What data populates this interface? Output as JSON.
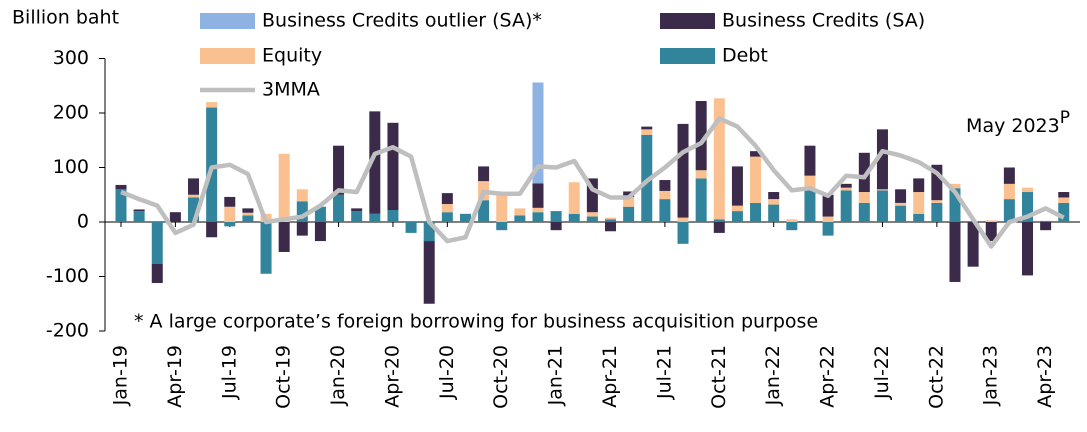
{
  "chart_data": {
    "type": "bar",
    "y_label": "Billion baht",
    "annotation": "* A large corporate’s foreign borrowing for business acquisition purpose",
    "date_note": "May 2023",
    "date_note_superscript": "P",
    "ylim": [
      -200,
      300
    ],
    "yticks": [
      300,
      200,
      100,
      0,
      -100,
      -200
    ],
    "categories": [
      "Jan-19",
      null,
      null,
      "Apr-19",
      null,
      null,
      "Jul-19",
      null,
      null,
      "Oct-19",
      null,
      null,
      "Jan-20",
      null,
      null,
      "Apr-20",
      null,
      null,
      "Jul-20",
      null,
      null,
      "Oct-20",
      null,
      null,
      "Jan-21",
      null,
      null,
      "Apr-21",
      null,
      null,
      "Jul-21",
      null,
      null,
      "Oct-21",
      null,
      null,
      "Jan-22",
      null,
      null,
      "Apr-22",
      null,
      null,
      "Jul-22",
      null,
      null,
      "Oct-22",
      null,
      null,
      "Jan-23",
      null,
      null,
      "Apr-23",
      null
    ],
    "series": [
      {
        "name": "Debt",
        "color": "#31849b",
        "values": [
          60,
          20,
          -77,
          0,
          45,
          210,
          -8,
          12,
          -95,
          0,
          38,
          28,
          50,
          20,
          15,
          22,
          -20,
          -35,
          18,
          15,
          40,
          -15,
          12,
          18,
          20,
          15,
          10,
          5,
          28,
          160,
          42,
          -40,
          80,
          5,
          20,
          35,
          32,
          -15,
          60,
          -25,
          58,
          35,
          58,
          30,
          15,
          35,
          62,
          0,
          0,
          42,
          55,
          2,
          35
        ]
      },
      {
        "name": "Equity",
        "color": "#fac090",
        "values": [
          0,
          0,
          0,
          0,
          5,
          10,
          28,
          5,
          15,
          125,
          22,
          0,
          0,
          0,
          0,
          0,
          0,
          0,
          15,
          0,
          35,
          50,
          13,
          8,
          0,
          58,
          8,
          3,
          18,
          10,
          15,
          8,
          15,
          222,
          10,
          85,
          10,
          5,
          25,
          10,
          5,
          20,
          2,
          5,
          40,
          5,
          8,
          0,
          3,
          28,
          8,
          0,
          10
        ]
      },
      {
        "name": "Business Credits (SA)",
        "color": "#3b2a4a",
        "values": [
          8,
          3,
          -35,
          18,
          30,
          -28,
          18,
          8,
          0,
          -55,
          -25,
          -35,
          90,
          5,
          188,
          160,
          0,
          -115,
          20,
          0,
          27,
          0,
          0,
          45,
          -15,
          0,
          62,
          -17,
          10,
          5,
          20,
          172,
          127,
          -20,
          72,
          10,
          13,
          0,
          55,
          40,
          7,
          72,
          110,
          25,
          25,
          65,
          -110,
          -82,
          -35,
          30,
          -98,
          -15,
          10
        ]
      },
      {
        "name": "Business Credits outlier (SA)*",
        "color": "#8db3e2",
        "values": [
          null,
          null,
          null,
          null,
          null,
          null,
          null,
          null,
          null,
          null,
          null,
          null,
          null,
          null,
          null,
          null,
          null,
          null,
          null,
          null,
          null,
          null,
          null,
          185,
          null,
          null,
          null,
          null,
          null,
          null,
          null,
          null,
          null,
          null,
          null,
          null,
          null,
          null,
          null,
          null,
          null,
          null,
          null,
          null,
          null,
          null,
          null,
          null,
          null,
          null,
          null,
          null,
          null
        ]
      },
      {
        "name": "3MMA",
        "type": "line",
        "color": "#bfbfbf",
        "values": [
          55,
          42,
          30,
          -20,
          -5,
          100,
          105,
          88,
          0,
          5,
          10,
          30,
          58,
          55,
          125,
          137,
          120,
          0,
          -35,
          -28,
          55,
          52,
          52,
          102,
          100,
          112,
          60,
          45,
          45,
          75,
          100,
          128,
          145,
          190,
          175,
          140,
          95,
          58,
          62,
          48,
          85,
          82,
          130,
          122,
          110,
          90,
          55,
          5,
          -45,
          0,
          10,
          25,
          8
        ]
      }
    ]
  }
}
